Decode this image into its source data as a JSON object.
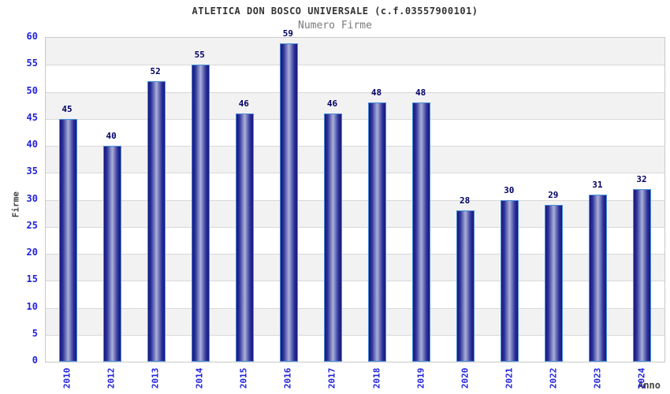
{
  "chart_data": {
    "type": "bar",
    "title": "ATLETICA DON BOSCO UNIVERSALE (c.f.03557900101)",
    "subtitle": "Numero Firme",
    "xlabel": "Anno",
    "ylabel": "Firme",
    "categories": [
      "2010",
      "2012",
      "2013",
      "2014",
      "2015",
      "2016",
      "2017",
      "2018",
      "2019",
      "2020",
      "2021",
      "2022",
      "2023",
      "2024"
    ],
    "values": [
      45,
      40,
      52,
      55,
      46,
      59,
      46,
      48,
      48,
      28,
      30,
      29,
      31,
      32
    ],
    "ylim": [
      0,
      60
    ],
    "ytick_step": 5,
    "yticks": [
      0,
      5,
      10,
      15,
      20,
      25,
      30,
      35,
      40,
      45,
      50,
      55,
      60
    ],
    "grid": "horizontal alternating bands, gridline every 5 units",
    "legend": "none",
    "colors": {
      "title_color": "#333333",
      "subtitle_color": "#7a7a7a",
      "tick_blue": "#2222dd",
      "value_label": "#000066",
      "axis_label": "#444444",
      "bar_edge": "#16167d",
      "bar_mid": "#aab0d8",
      "bar_border": "#4a90d9",
      "band_gray": "#f2f2f2",
      "band_white": "#ffffff",
      "gridline": "#d8d8d8",
      "plot_border": "#c9c9c9"
    }
  }
}
